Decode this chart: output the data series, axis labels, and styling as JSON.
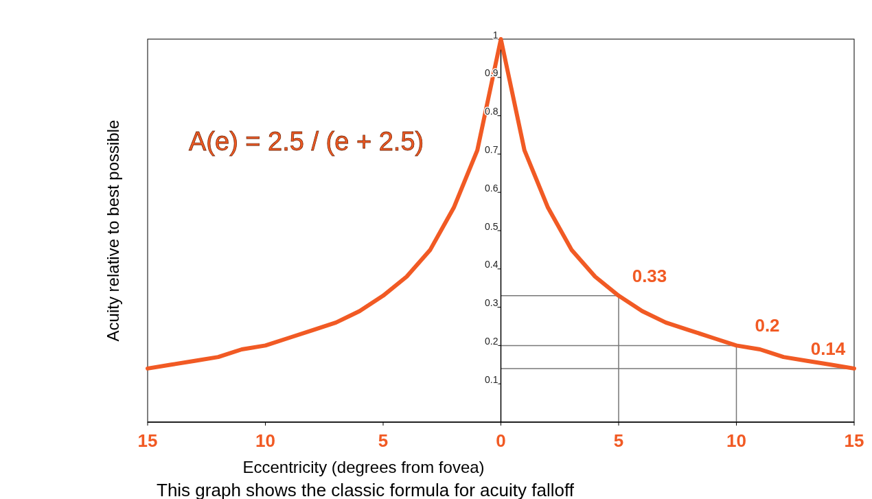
{
  "chart_data": {
    "type": "line",
    "xlabel": "Eccentricity (degrees from fovea)",
    "ylabel": "Acuity relative to best possible",
    "x": [
      -15,
      -14,
      -13,
      -12,
      -11,
      -10,
      -9,
      -8,
      -7,
      -6,
      -5,
      -4,
      -3,
      -2,
      -1,
      0,
      1,
      2,
      3,
      4,
      5,
      6,
      7,
      8,
      9,
      10,
      11,
      12,
      13,
      14,
      15
    ],
    "series": [
      {
        "color": "#f15a24",
        "values": [
          0.14,
          0.15,
          0.16,
          0.17,
          0.19,
          0.2,
          0.22,
          0.24,
          0.26,
          0.29,
          0.33,
          0.38,
          0.45,
          0.56,
          0.71,
          1,
          0.71,
          0.56,
          0.45,
          0.38,
          0.33,
          0.29,
          0.26,
          0.24,
          0.22,
          0.2,
          0.19,
          0.17,
          0.16,
          0.15,
          0.14
        ]
      }
    ],
    "xlim": [
      -15,
      15
    ],
    "ylim": [
      0,
      1
    ],
    "xticks": [
      {
        "value": -15,
        "label": "15"
      },
      {
        "value": -10,
        "label": "10"
      },
      {
        "value": -5,
        "label": "5"
      },
      0,
      5,
      10,
      15
    ],
    "yticks": [
      0.1,
      0.2,
      0.3,
      0.4,
      0.5,
      0.6,
      0.7,
      0.8,
      0.9,
      1
    ],
    "annotations": [
      "A(e) = 2.5 / (e + 2.5)",
      {
        "text": "0.33",
        "x": 5,
        "y": 0.33
      },
      {
        "text": "0.2",
        "x": 10,
        "y": 0.2
      },
      {
        "text": "0.14",
        "x": 15,
        "y": 0.14
      },
      "This graph shows the classic formula for acuity falloff"
    ],
    "marker": "none",
    "line_style": "solid",
    "grid": false
  }
}
